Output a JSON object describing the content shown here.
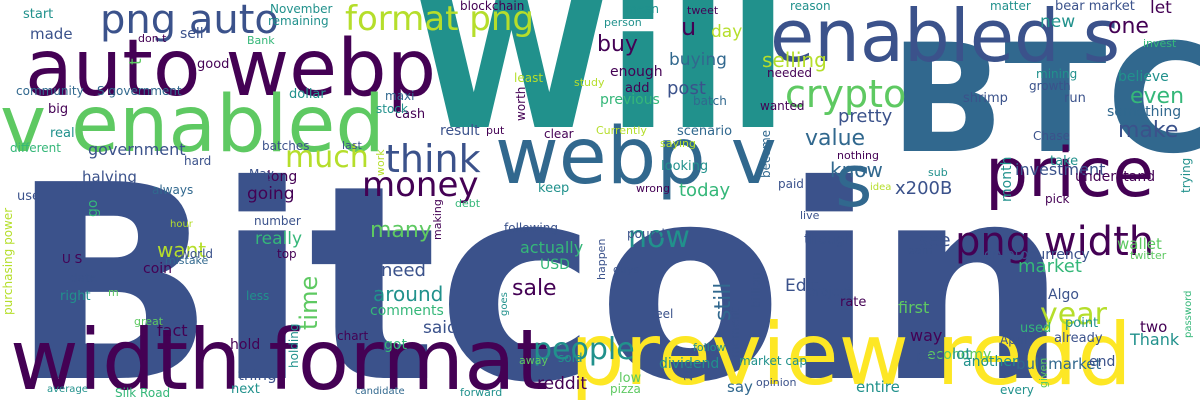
{
  "palette": {
    "deep_purple": "#440154",
    "indigo": "#3b528b",
    "steel_blue": "#31688e",
    "teal": "#21918c",
    "green": "#35b779",
    "lime": "#5ec962",
    "yellow": "#fde725",
    "olive_yellow": "#b5de2b"
  },
  "words": [
    {
      "text": "Bitcoin"
    },
    {
      "text": "Will"
    },
    {
      "text": "BTC"
    },
    {
      "text": "preview redd"
    },
    {
      "text": "width format"
    },
    {
      "text": "enabled s"
    },
    {
      "text": "auto webp"
    },
    {
      "text": "v enabled"
    },
    {
      "text": "webp v"
    },
    {
      "text": "s"
    },
    {
      "text": "price"
    },
    {
      "text": "png width"
    },
    {
      "text": "png auto"
    },
    {
      "text": "format png"
    },
    {
      "text": "crypto"
    },
    {
      "text": "think"
    },
    {
      "text": "money"
    },
    {
      "text": "much"
    },
    {
      "text": "people"
    },
    {
      "text": "now"
    },
    {
      "text": "year"
    },
    {
      "text": "time"
    },
    {
      "text": "market"
    },
    {
      "text": "one"
    },
    {
      "text": "u"
    },
    {
      "text": "buy"
    },
    {
      "text": "make"
    },
    {
      "text": "even"
    },
    {
      "text": "value"
    },
    {
      "text": "know"
    },
    {
      "text": "sale"
    },
    {
      "text": "many"
    },
    {
      "text": "around"
    },
    {
      "text": "still"
    },
    {
      "text": "selling"
    },
    {
      "text": "government"
    },
    {
      "text": "post"
    },
    {
      "text": "buying"
    },
    {
      "text": "pretty"
    },
    {
      "text": "today"
    },
    {
      "text": "going"
    },
    {
      "text": "really"
    },
    {
      "text": "need"
    },
    {
      "text": "said"
    },
    {
      "text": "want"
    },
    {
      "text": "made"
    },
    {
      "text": "sell"
    },
    {
      "text": "good"
    },
    {
      "text": "enough"
    },
    {
      "text": "previous"
    },
    {
      "text": "investment"
    },
    {
      "text": "x200B"
    },
    {
      "text": "first"
    },
    {
      "text": "way"
    },
    {
      "text": "see"
    },
    {
      "text": "wallet"
    },
    {
      "text": "cryptocurrency"
    },
    {
      "text": "Algo"
    },
    {
      "text": "bull market"
    },
    {
      "text": "Thank"
    },
    {
      "text": "economy"
    },
    {
      "text": "reddit"
    },
    {
      "text": "Edit"
    },
    {
      "text": "actually"
    },
    {
      "text": "USD"
    },
    {
      "text": "comments"
    },
    {
      "text": "fact"
    },
    {
      "text": "day"
    },
    {
      "text": "let"
    },
    {
      "text": "new"
    },
    {
      "text": "believe"
    },
    {
      "text": "something"
    },
    {
      "text": "understand"
    },
    {
      "text": "month"
    },
    {
      "text": "lot"
    },
    {
      "text": "two"
    },
    {
      "text": "got"
    },
    {
      "text": "say"
    },
    {
      "text": "dividend"
    },
    {
      "text": "entire"
    },
    {
      "text": "thing"
    },
    {
      "text": "hold"
    },
    {
      "text": "halving"
    },
    {
      "text": "long"
    },
    {
      "text": "coin"
    },
    {
      "text": "result"
    },
    {
      "text": "cash"
    },
    {
      "text": "wanted"
    },
    {
      "text": "needed"
    },
    {
      "text": "scenario"
    },
    {
      "text": "become"
    },
    {
      "text": "though"
    },
    {
      "text": "project"
    },
    {
      "text": "per"
    },
    {
      "text": "Chase"
    },
    {
      "text": "shrimp"
    },
    {
      "text": "run"
    },
    {
      "text": "growth"
    },
    {
      "text": "mining"
    },
    {
      "text": "bear market"
    },
    {
      "text": "invest"
    },
    {
      "text": "matter"
    },
    {
      "text": "reason"
    },
    {
      "text": "tweet"
    },
    {
      "text": "mean"
    },
    {
      "text": "person"
    },
    {
      "text": "blockchain"
    },
    {
      "text": "November"
    },
    {
      "text": "remaining"
    },
    {
      "text": "start"
    },
    {
      "text": "don t"
    },
    {
      "text": "t"
    },
    {
      "text": "Bank"
    },
    {
      "text": "dollar"
    },
    {
      "text": "maxi"
    },
    {
      "text": "stock"
    },
    {
      "text": "community"
    },
    {
      "text": "S government"
    },
    {
      "text": "big"
    },
    {
      "text": "real"
    },
    {
      "text": "different"
    },
    {
      "text": "last"
    },
    {
      "text": "batches"
    },
    {
      "text": "hard"
    },
    {
      "text": "May"
    },
    {
      "text": "always"
    },
    {
      "text": "sure"
    },
    {
      "text": "use"
    },
    {
      "text": "go"
    },
    {
      "text": "number"
    },
    {
      "text": "purchasing power"
    },
    {
      "text": "hour"
    },
    {
      "text": "world"
    },
    {
      "text": "mistake"
    },
    {
      "text": "U S"
    },
    {
      "text": "date"
    },
    {
      "text": "right"
    },
    {
      "text": "m"
    },
    {
      "text": "less"
    },
    {
      "text": "top"
    },
    {
      "text": "holding"
    },
    {
      "text": "great"
    },
    {
      "text": "chart"
    },
    {
      "text": "average"
    },
    {
      "text": "Silk Road"
    },
    {
      "text": "next"
    },
    {
      "text": "candidate"
    },
    {
      "text": "forward"
    },
    {
      "text": "pizza"
    },
    {
      "text": "low"
    },
    {
      "text": "sold"
    },
    {
      "text": "away"
    },
    {
      "text": "2M"
    },
    {
      "text": "opinion"
    },
    {
      "text": "market cap"
    },
    {
      "text": "follow"
    },
    {
      "text": "feel"
    },
    {
      "text": "moment"
    },
    {
      "text": "billion"
    },
    {
      "text": "goes"
    },
    {
      "text": "guys"
    },
    {
      "text": "happen"
    },
    {
      "text": "pound"
    },
    {
      "text": "following"
    },
    {
      "text": "earn"
    },
    {
      "text": "live"
    },
    {
      "text": "paid"
    },
    {
      "text": "wrong"
    },
    {
      "text": "looking"
    },
    {
      "text": "saying"
    },
    {
      "text": "Currently"
    },
    {
      "text": "clear"
    },
    {
      "text": "put"
    },
    {
      "text": "worth"
    },
    {
      "text": "least"
    },
    {
      "text": "add"
    },
    {
      "text": "study"
    },
    {
      "text": "batch"
    },
    {
      "text": "nothing"
    },
    {
      "text": "idea"
    },
    {
      "text": "sub"
    },
    {
      "text": "pick"
    },
    {
      "text": "take"
    },
    {
      "text": "trying"
    },
    {
      "text": "twitter"
    },
    {
      "text": "password"
    },
    {
      "text": "point"
    },
    {
      "text": "used"
    },
    {
      "text": "April"
    },
    {
      "text": "rate"
    },
    {
      "text": "already"
    },
    {
      "text": "another"
    },
    {
      "text": "end"
    },
    {
      "text": "given"
    },
    {
      "text": "every"
    },
    {
      "text": "work"
    },
    {
      "text": "debt"
    },
    {
      "text": "making"
    },
    {
      "text": "keep"
    }
  ]
}
